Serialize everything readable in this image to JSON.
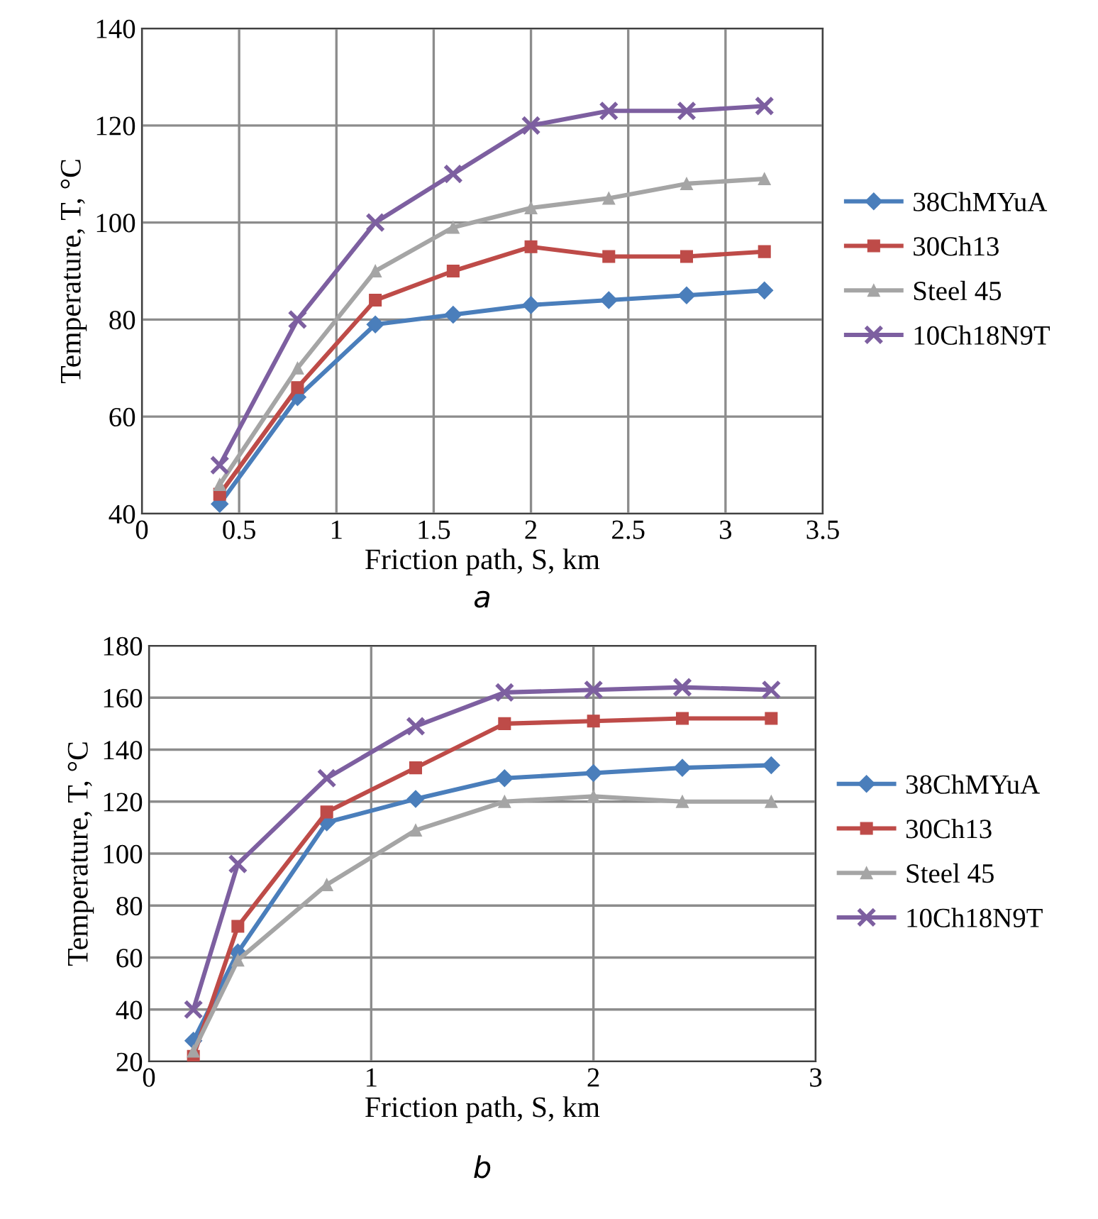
{
  "chart_data": [
    {
      "type": "line",
      "xlabel": "Friction path, S, km",
      "ylabel": "Temperature, T, °C",
      "annotations": [
        "a"
      ],
      "x": [
        0.4,
        0.8,
        1.2,
        1.6,
        2.0,
        2.4,
        2.8,
        3.2
      ],
      "xlim": [
        0,
        3.5
      ],
      "xticks": [
        0,
        0.5,
        1,
        1.5,
        2,
        2.5,
        3,
        3.5
      ],
      "ylim": [
        40,
        140
      ],
      "yticks": [
        40,
        60,
        80,
        100,
        120,
        140
      ],
      "grid": true,
      "legend": "right",
      "line_style": "solid",
      "series": [
        {
          "name": "38ChMYuA",
          "color": "#4a7ebb",
          "marker": "diamond",
          "values": [
            42,
            64,
            79,
            81,
            83,
            84,
            85,
            86
          ]
        },
        {
          "name": "30Ch13",
          "color": "#be4b48",
          "marker": "square",
          "values": [
            44,
            66,
            84,
            90,
            95,
            93,
            93,
            94
          ]
        },
        {
          "name": "Steel 45",
          "color": "#a5a5a5",
          "marker": "triangle",
          "values": [
            46,
            70,
            90,
            99,
            103,
            105,
            108,
            109
          ]
        },
        {
          "name": "10Ch18N9T",
          "color": "#7d5fa0",
          "marker": "cross",
          "values": [
            50,
            80,
            100,
            110,
            120,
            123,
            123,
            124
          ]
        }
      ]
    },
    {
      "type": "line",
      "xlabel": "Friction path, S, km",
      "ylabel": "Temperature, T, °C",
      "annotations": [
        "b"
      ],
      "x": [
        0.2,
        0.4,
        0.8,
        1.2,
        1.6,
        2.0,
        2.4,
        2.8
      ],
      "xlim": [
        0,
        3
      ],
      "xticks": [
        0,
        1,
        2,
        3
      ],
      "ylim": [
        20,
        180
      ],
      "yticks": [
        20,
        40,
        60,
        80,
        100,
        120,
        140,
        160,
        180
      ],
      "grid": true,
      "legend": "right",
      "line_style": "solid",
      "series": [
        {
          "name": "38ChMYuA",
          "color": "#4a7ebb",
          "marker": "diamond",
          "values": [
            28,
            62,
            112,
            121,
            129,
            131,
            133,
            134
          ]
        },
        {
          "name": "30Ch13",
          "color": "#be4b48",
          "marker": "square",
          "values": [
            22,
            72,
            116,
            133,
            150,
            151,
            152,
            152
          ]
        },
        {
          "name": "Steel 45",
          "color": "#a5a5a5",
          "marker": "triangle",
          "values": [
            24,
            59,
            88,
            109,
            120,
            122,
            120,
            120
          ]
        },
        {
          "name": "10Ch18N9T",
          "color": "#7d5fa0",
          "marker": "cross",
          "values": [
            40,
            96,
            129,
            149,
            162,
            163,
            164,
            163
          ]
        }
      ]
    }
  ]
}
